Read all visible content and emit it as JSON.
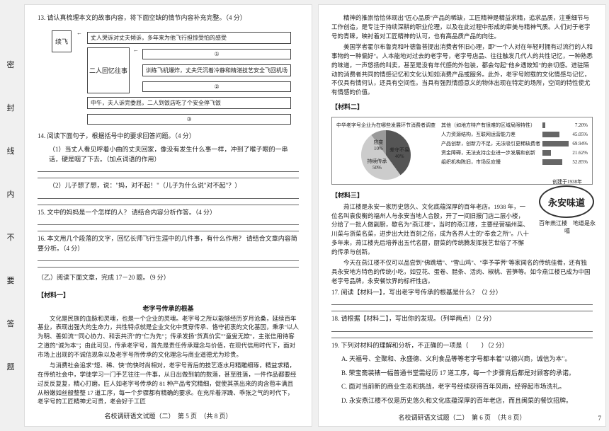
{
  "sidebar": [
    "密",
    "封",
    "线",
    "内",
    "不",
    "要",
    "答",
    "题"
  ],
  "left": {
    "q13": {
      "prompt": "13. 请认真梳理本文的故事内容，将下面空缺的情节内容补充完整。（4 分）",
      "root": "续飞",
      "leftBox": "二人回忆往事",
      "boxes": [
        "丈人哭诉对丈夫倾诉，多年来为他飞行担惊受怕的感受",
        "①",
        "训练飞机爆炸，丈夫凭沉着冷静和精湛技艺安全飞回机场",
        "②",
        "中午，夫人诉完委屈，二人到饭店吃了个安全停飞饭",
        "③"
      ]
    },
    "q14": {
      "prompt": "14. 阅读下面句子，根据括号中的要求回答问题。（4 分）",
      "sub1": "（1）当丈人看见呼着小曲的丈夫回家，像没有发生什么事一样，冲到了喉子眼的一串话，硬是咽了下去。（加点词语的作用）",
      "sub2": "（2）儿子想了想，说：\"妈，对不起！\"（儿子为什么说\"对不起\"？）"
    },
    "q15": "15. 文中的妈妈是一个怎样的人？ 请结合内容分析作答。（4 分）",
    "q16": "16. 本文用几个段落的文字，回忆长师飞行生涯中的几件事，有什么作用？ 请结合文章内容简要分析。（4 分）",
    "section2": "（乙）阅读下面文章，完成 17－20 题。（9 分）",
    "m1title": "【材料一】",
    "title2": "老字号传承的根基",
    "m1paras": [
      "文化是民族的血脉和灵魂，也是一个企业的灵魂。老字号之所以能够经历岁月沧桑，延续百年基业，表现出强大的生命力，共性特点就是企业文化中贯穿传承、恪守初衷的文化基因，秉承\"以人为明、善如流\"\"同心协力、和衷共济\"的\"仁为先\"；传承发扬\"货真价实\"\"童叟无欺\"，主张信用待客之道的\"诚为本\"；由此可见，传承老字号，首先是责任传承理念与价值，在现代信用时代下，面对市场上出现的不诚信现象以及老字号所传承的文化理念与商业道德尤为珍贵。",
      "与消费社会追求\"短、稀、快\"的快时尚相对，老字号背后的技艺逐水月精雕细琢，精益求精，在传统社会中，学徒学习一门手艺往往一件事，从日出做到前的数落，甚至胜落，一件作品都要经过反反复复，精心打磨。匠人如老字号传承的 81 种产品考究精细，促使其蒸出来的肉含苞丰满且从粉嫩如丝般整整 17 道工序，每一个步骤都有精确的要求。在充斥着浮躁、乖张之气的时代下，老字号的工匠精神尤可贵，老会好于工匠"
    ],
    "footer": "名校调研语文试题（二）　第 5 页　（共 8 页）"
  },
  "right": {
    "topParas": [
      "精神的推崇恰恰体现出\"匠心品质\"产品的稀缺，工匠精神是精益求精，追求品质，注重细节与工作创造，是专注于持续深耕的职业伦理，以及在此过程中形成的审美与精神气质。人们对于老字号的青睐，映衬着对工匠精神的认可，也有高品质产品的向往。",
      "美国学者霍尔布鲁克和叶德鲁普提出消费者怀旧心理，即\"一个人对在年轻时拥有过流行的人和事物的一种偏好\"。人本能地对过去的老字号，老字号店品、往往触发几代人的共性记忆，一种熟悉的味道，一声悠扬的叫卖，甚至是没有年代感的外包装，都会勾起\"他乡遇故知\"的亲切感。进驻陌动的消费者共同的情感记忆和文化认知如消费产品或服务。此外，老字号附载的文化情感与记忆，不仅具有情何认，还具有空间性。当具有强烈情感意义的物体出现在特定的场所，空间的特性使尤有情感的价值。"
    ],
    "m2title": "【材料二】",
    "chartTitle": "中华老字号企业为在哪些发展环节消费者调查",
    "pie": {
      "segments": [
        {
          "label": "差守不易",
          "pct": 40,
          "color": "#555"
        },
        {
          "label": "持续传承",
          "pct": 50,
          "color": "#ccc"
        },
        {
          "label": "应变",
          "pct": 10,
          "color": "#999"
        }
      ]
    },
    "bars": [
      {
        "label": "其他（如地方特产有很难的区域局限特性）",
        "val": 7.2
      },
      {
        "label": "人力资源结构，互联网运营能力差",
        "val": 45.05
      },
      {
        "label": "产品创新，创新力不足，无法吸引更稀缺费者",
        "val": 69.94
      },
      {
        "label": "资金障碍，无法支持企业进一步发展和创新",
        "val": 21.62
      },
      {
        "label": "组织机构陈旧，市场反应慢",
        "val": 52.85
      }
    ],
    "m3title": "【材料三】",
    "m3paras": [
      "燕江楼是永安一家历史悠久、文化底蕴深厚的百年老店。1938 年，一位名叫袁俊衡的福州人与永安当地人合股，开了一间旧报门店二层小楼，分给了一批人做副厨，歇名为\"燕江楼\"，当时的燕江楼，主要经营福州菜、川菜与浙菜名菜，进步出大灶百刻之俗，成为各界人士的\"奉会之所\"。八十多年来，燕江楼先后培养出五代名厨，厨菜的传统腾发挥技艺世俗了不懈的传承与创新。",
      "今天在燕江楼不仅可以品尝到\"佛跳墙\"、\"雪山鸡\"、\"李予荸荠\"等家闻名的传统佳肴，还有独具永安地方特色的传统小吃，如豆花、蛋卷、腊条、活肉、椒桃、苦笋等。如今燕江楼已成为中国老字号品牌，永安餐饮界的标杆性店。"
    ],
    "q17": "17. 阅读【材料一】，写出老字号传承的根基是什么？（2 分）",
    "q18": "18. 请根据【材料二】，写出你的发现。（列举两点）（2 分）",
    "q19": {
      "prompt": "19. 下列对材料的理解和分析，不正确的一项是（　　）（2 分）",
      "opts": [
        "A. 天福号、全聚和、永盛德、义利食品等等老字号都本着\"以德兴商，诚信为本\"。",
        "B. 荣宝斋装裱一幅普通书堂需经历 17 道工序，每一个步骤背后都是对顾客的承诺。",
        "C. 面对当前新的商业生态和挑战，老字号经续获得百年风雨，经得起市场洗礼。",
        "D. 永安燕江楼不仅是历史悠久和文化底蕴深厚的百年老店，而且闽菜的餐饮招牌。"
      ]
    },
    "stamp": {
      "top": "创建于1938年",
      "main": "永安味道",
      "sub": "百年燕江楼　地道是永嘻"
    },
    "footer": "名校调研语文试题（二）　第 6 页　（共 8 页）",
    "pageNum": "7"
  }
}
